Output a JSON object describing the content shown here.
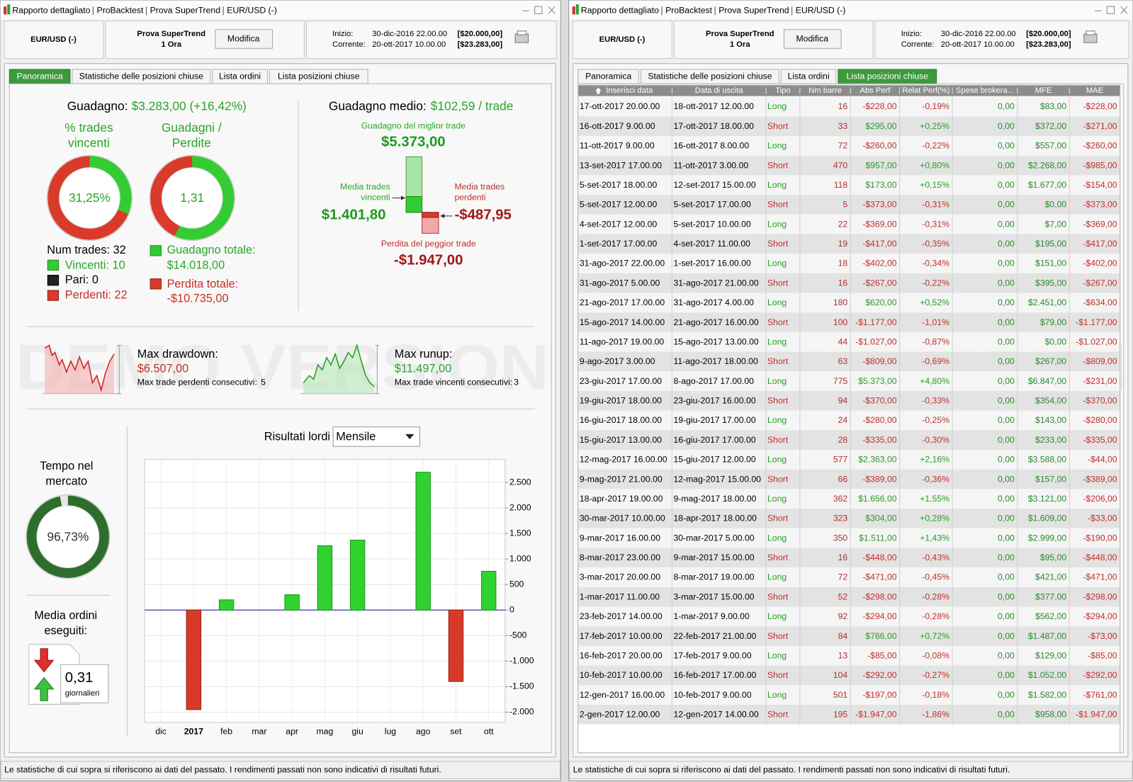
{
  "window": {
    "title": [
      "Rapporto dettagliato",
      "ProBacktest",
      "Prova SuperTrend",
      "EUR/USD (-)"
    ],
    "instrument": "EUR/USD (-)",
    "strategy": "Prova SuperTrend",
    "timeframe": "1 Ora",
    "edit_button": "Modifica",
    "start_label": "Inizio:",
    "start_date": "30-dic-2016 22.00.00",
    "start_capital": "[$20.000,00]",
    "current_label": "Corrente:",
    "current_date": "20-ott-2017 10.00.00",
    "current_capital": "[$23.283,00]",
    "tabs": [
      "Panoramica",
      "Statistiche delle posizioni chiuse",
      "Lista ordini",
      "Lista posizioni chiuse"
    ],
    "footer": "Le statistiche di cui sopra si riferiscono ai dati del passato. I rendimenti passati non sono indicativi di risultati futuri."
  },
  "overview": {
    "gain_label": "Guadagno:",
    "gain_value": "$3.283,00 (+16,42%)",
    "win_pct_label": [
      "% trades",
      "vincenti"
    ],
    "win_pct": {
      "value": 31.25,
      "label": "31,25%"
    },
    "ratio_label": [
      "Guadagni /",
      "Perdite"
    ],
    "ratio": {
      "value": 1.31,
      "label": "1,31"
    },
    "num_trades": "Num trades: 32",
    "winners": "Vincenti: 10",
    "even": "Pari: 0",
    "losers": "Perdenti: 22",
    "total_gain_label": "Guadagno totale:",
    "total_gain": "$14.018,00",
    "total_loss_label": "Perdita totale:",
    "total_loss": "-$10.735,00",
    "avg_gain_label": "Guadagno medio:",
    "avg_gain": "$102,59 / trade",
    "best_trade_label": "Guadagno del miglior trade",
    "best_trade": "$5.373,00",
    "avg_win_label": [
      "Media trades",
      "vincenti"
    ],
    "avg_win": "$1.401,80",
    "avg_loss_label": [
      "Media trades",
      "perdenti"
    ],
    "avg_loss": "-$487,95",
    "worst_trade_label": "Perdita del peggior trade",
    "worst_trade": "-$1.947,00",
    "drawdown_label": "Max drawdown:",
    "drawdown": "$6.507,00",
    "max_consec_losses_label": "Max trade perdenti consecutivi:",
    "max_consec_losses": "5",
    "runup_label": "Max runup:",
    "runup": "$11.497,00",
    "max_consec_wins_label": "Max trade vincenti consecutivi:",
    "max_consec_wins": "3",
    "time_in_market_label": [
      "Tempo nel",
      "mercato"
    ],
    "time_in_market": {
      "value": 96.73,
      "label": "96,73%"
    },
    "orders_label": [
      "Media ordini",
      "eseguiti:"
    ],
    "orders_per_day": "0,31",
    "orders_unit": "giornalieri",
    "watermark": "DEMO VERSION"
  },
  "chart_data": {
    "type": "bar",
    "title": "Risultati lordi",
    "period": "Mensile",
    "categories": [
      "dic",
      "2017",
      "feb",
      "mar",
      "apr",
      "mag",
      "giu",
      "lug",
      "ago",
      "set",
      "ott"
    ],
    "values": [
      0,
      -1950,
      200,
      0,
      300,
      1260,
      1370,
      0,
      2700,
      -1400,
      760
    ],
    "positive_color": "#2fd22f",
    "negative_color": "#d83a2a",
    "ylim": [
      -2200,
      2950
    ],
    "yticks": [
      {
        "value": -2000,
        "label": "-2.000"
      },
      {
        "value": -1500,
        "label": "-1.500"
      },
      {
        "value": -1000,
        "label": "-1.000"
      },
      -500,
      0,
      500,
      {
        "value": 1000,
        "label": "1.000"
      },
      {
        "value": 1500,
        "label": "1.500"
      },
      {
        "value": 2000,
        "label": "2.000"
      },
      {
        "value": 2500,
        "label": "2.500"
      }
    ],
    "grid": true
  },
  "table": {
    "columns": [
      "Inserisci data",
      "Data di uscita",
      "Tipo",
      "Nm barre",
      "Abs Perf",
      "Relat Perf(%)",
      "Spese brokera...",
      "MFE",
      "MAE"
    ],
    "rows": [
      [
        "17-ott-2017 20.00.00",
        "18-ott-2017 12.00.00",
        "Long",
        "16",
        "-$228,00",
        "-0,19%",
        "0,00",
        "$83,00",
        "-$228,00"
      ],
      [
        "16-ott-2017 9.00.00",
        "17-ott-2017 18.00.00",
        "Short",
        "33",
        "$295,00",
        "+0,25%",
        "0,00",
        "$372,00",
        "-$271,00"
      ],
      [
        "11-ott-2017 9.00.00",
        "16-ott-2017 8.00.00",
        "Long",
        "72",
        "-$260,00",
        "-0,22%",
        "0,00",
        "$557,00",
        "-$260,00"
      ],
      [
        "13-set-2017 17.00.00",
        "11-ott-2017 3.00.00",
        "Short",
        "470",
        "$957,00",
        "+0,80%",
        "0,00",
        "$2.268,00",
        "-$985,00"
      ],
      [
        "5-set-2017 18.00.00",
        "12-set-2017 15.00.00",
        "Long",
        "118",
        "$173,00",
        "+0,15%",
        "0,00",
        "$1.677,00",
        "-$154,00"
      ],
      [
        "5-set-2017 12.00.00",
        "5-set-2017 17.00.00",
        "Short",
        "5",
        "-$373,00",
        "-0,31%",
        "0,00",
        "$0,00",
        "-$373,00"
      ],
      [
        "4-set-2017 12.00.00",
        "5-set-2017 10.00.00",
        "Long",
        "22",
        "-$369,00",
        "-0,31%",
        "0,00",
        "$7,00",
        "-$369,00"
      ],
      [
        "1-set-2017 17.00.00",
        "4-set-2017 11.00.00",
        "Short",
        "19",
        "-$417,00",
        "-0,35%",
        "0,00",
        "$195,00",
        "-$417,00"
      ],
      [
        "31-ago-2017 22.00.00",
        "1-set-2017 16.00.00",
        "Long",
        "18",
        "-$402,00",
        "-0,34%",
        "0,00",
        "$151,00",
        "-$402,00"
      ],
      [
        "31-ago-2017 5.00.00",
        "31-ago-2017 21.00.00",
        "Short",
        "16",
        "-$267,00",
        "-0,22%",
        "0,00",
        "$395,00",
        "-$267,00"
      ],
      [
        "21-ago-2017 17.00.00",
        "31-ago-2017 4.00.00",
        "Long",
        "180",
        "$620,00",
        "+0,52%",
        "0,00",
        "$2.451,00",
        "-$634,00"
      ],
      [
        "15-ago-2017 14.00.00",
        "21-ago-2017 16.00.00",
        "Short",
        "100",
        "-$1.177,00",
        "-1,01%",
        "0,00",
        "$79,00",
        "-$1.177,00"
      ],
      [
        "11-ago-2017 19.00.00",
        "15-ago-2017 13.00.00",
        "Long",
        "44",
        "-$1.027,00",
        "-0,87%",
        "0,00",
        "$0,00",
        "-$1.027,00"
      ],
      [
        "9-ago-2017 3.00.00",
        "11-ago-2017 18.00.00",
        "Short",
        "63",
        "-$809,00",
        "-0,69%",
        "0,00",
        "$267,00",
        "-$809,00"
      ],
      [
        "23-giu-2017 17.00.00",
        "8-ago-2017 17.00.00",
        "Long",
        "775",
        "$5.373,00",
        "+4,80%",
        "0,00",
        "$6.847,00",
        "-$231,00"
      ],
      [
        "19-giu-2017 18.00.00",
        "23-giu-2017 16.00.00",
        "Short",
        "94",
        "-$370,00",
        "-0,33%",
        "0,00",
        "$354,00",
        "-$370,00"
      ],
      [
        "16-giu-2017 18.00.00",
        "19-giu-2017 17.00.00",
        "Long",
        "24",
        "-$280,00",
        "-0,25%",
        "0,00",
        "$143,00",
        "-$280,00"
      ],
      [
        "15-giu-2017 13.00.00",
        "16-giu-2017 17.00.00",
        "Short",
        "28",
        "-$335,00",
        "-0,30%",
        "0,00",
        "$233,00",
        "-$335,00"
      ],
      [
        "12-mag-2017 16.00.00",
        "15-giu-2017 12.00.00",
        "Long",
        "577",
        "$2.363,00",
        "+2,16%",
        "0,00",
        "$3.588,00",
        "-$44,00"
      ],
      [
        "9-mag-2017 21.00.00",
        "12-mag-2017 15.00.00",
        "Short",
        "66",
        "-$389,00",
        "-0,36%",
        "0,00",
        "$157,00",
        "-$389,00"
      ],
      [
        "18-apr-2017 19.00.00",
        "9-mag-2017 18.00.00",
        "Long",
        "362",
        "$1.656,00",
        "+1,55%",
        "0,00",
        "$3.121,00",
        "-$206,00"
      ],
      [
        "30-mar-2017 10.00.00",
        "18-apr-2017 18.00.00",
        "Short",
        "323",
        "$304,00",
        "+0,28%",
        "0,00",
        "$1.609,00",
        "-$33,00"
      ],
      [
        "9-mar-2017 16.00.00",
        "30-mar-2017 5.00.00",
        "Long",
        "350",
        "$1.511,00",
        "+1,43%",
        "0,00",
        "$2.999,00",
        "-$190,00"
      ],
      [
        "8-mar-2017 23.00.00",
        "9-mar-2017 15.00.00",
        "Short",
        "16",
        "-$448,00",
        "-0,43%",
        "0,00",
        "$95,00",
        "-$448,00"
      ],
      [
        "3-mar-2017 20.00.00",
        "8-mar-2017 19.00.00",
        "Long",
        "72",
        "-$471,00",
        "-0,45%",
        "0,00",
        "$421,00",
        "-$471,00"
      ],
      [
        "1-mar-2017 11.00.00",
        "3-mar-2017 15.00.00",
        "Short",
        "52",
        "-$298,00",
        "-0,28%",
        "0,00",
        "$377,00",
        "-$298,00"
      ],
      [
        "23-feb-2017 14.00.00",
        "1-mar-2017 9.00.00",
        "Long",
        "92",
        "-$294,00",
        "-0,28%",
        "0,00",
        "$562,00",
        "-$294,00"
      ],
      [
        "17-feb-2017 10.00.00",
        "22-feb-2017 21.00.00",
        "Short",
        "84",
        "$766,00",
        "+0,72%",
        "0,00",
        "$1.487,00",
        "-$73,00"
      ],
      [
        "16-feb-2017 20.00.00",
        "17-feb-2017 9.00.00",
        "Long",
        "13",
        "-$85,00",
        "-0,08%",
        "0,00",
        "$129,00",
        "-$85,00"
      ],
      [
        "10-feb-2017 10.00.00",
        "16-feb-2017 17.00.00",
        "Short",
        "104",
        "-$292,00",
        "-0,27%",
        "0,00",
        "$1.052,00",
        "-$292,00"
      ],
      [
        "12-gen-2017 16.00.00",
        "10-feb-2017 9.00.00",
        "Long",
        "501",
        "-$197,00",
        "-0,18%",
        "0,00",
        "$1.582,00",
        "-$761,00"
      ],
      [
        "2-gen-2017 12.00.00",
        "12-gen-2017 14.00.00",
        "Short",
        "195",
        "-$1.947,00",
        "-1,86%",
        "0,00",
        "$958,00",
        "-$1.947,00"
      ]
    ]
  }
}
